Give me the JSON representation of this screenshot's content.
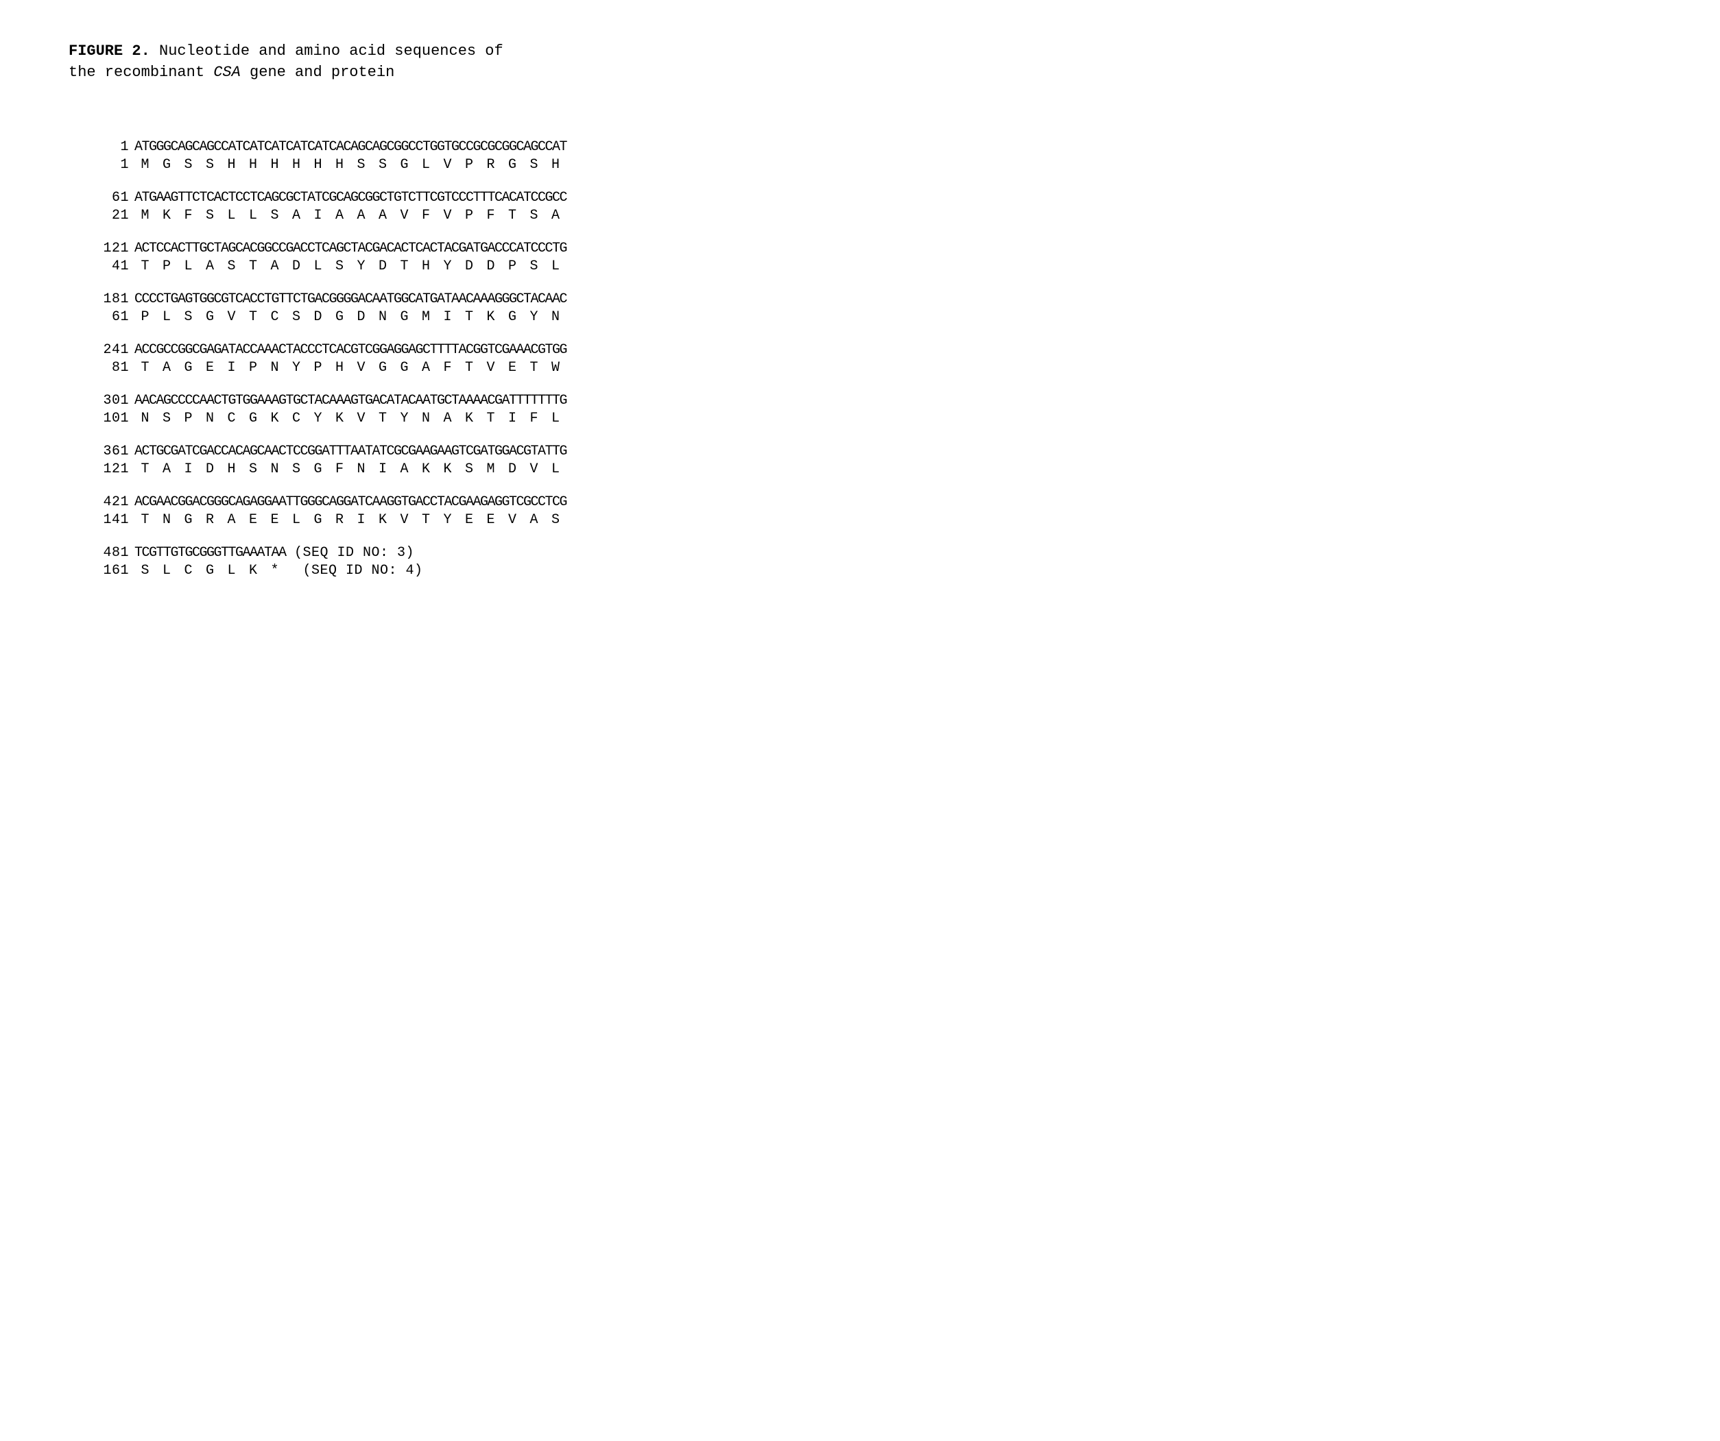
{
  "figure": {
    "label": "FIGURE 2.",
    "title_part1": "Nucleotide and amino acid sequences of",
    "title_part2": "the recombinant ",
    "gene_name": "CSA",
    "title_part3": " gene and protein"
  },
  "sequences": [
    {
      "nuc_pos": "1",
      "nucleotide": "ATGGGCAGCAGCCATCATCATCATCATCACAGCAGCGGCCTGGTGCCGCGCGGCAGCCAT",
      "aa_pos": "1",
      "amino_acids": [
        "M",
        "G",
        "S",
        "S",
        "H",
        "H",
        "H",
        "H",
        "H",
        "H",
        "S",
        "S",
        "G",
        "L",
        "V",
        "P",
        "R",
        "G",
        "S",
        "H"
      ]
    },
    {
      "nuc_pos": "61",
      "nucleotide": "ATGAAGTTCTCACTCCTCAGCGCTATCGCAGCGGCTGTCTTCGTCCCTTTCACATCCGCC",
      "aa_pos": "21",
      "amino_acids": [
        "M",
        "K",
        "F",
        "S",
        "L",
        "L",
        "S",
        "A",
        "I",
        "A",
        "A",
        "A",
        "V",
        "F",
        "V",
        "P",
        "F",
        "T",
        "S",
        "A"
      ]
    },
    {
      "nuc_pos": "121",
      "nucleotide": "ACTCCACTTGCTAGCACGGCCGACCTCAGCTACGACACTCACTACGATGACCCATCCCTG",
      "aa_pos": "41",
      "amino_acids": [
        "T",
        "P",
        "L",
        "A",
        "S",
        "T",
        "A",
        "D",
        "L",
        "S",
        "Y",
        "D",
        "T",
        "H",
        "Y",
        "D",
        "D",
        "P",
        "S",
        "L"
      ]
    },
    {
      "nuc_pos": "181",
      "nucleotide": "CCCCTGAGTGGCGTCACCTGTTCTGACGGGGACAATGGCATGATAACAAAGGGCTACAAC",
      "aa_pos": "61",
      "amino_acids": [
        "P",
        "L",
        "S",
        "G",
        "V",
        "T",
        "C",
        "S",
        "D",
        "G",
        "D",
        "N",
        "G",
        "M",
        "I",
        "T",
        "K",
        "G",
        "Y",
        "N"
      ]
    },
    {
      "nuc_pos": "241",
      "nucleotide": "ACCGCCGGCGAGATACCAAACTACCCTCACGTCGGAGGAGCTTTTACGGTCGAAACGTGG",
      "aa_pos": "81",
      "amino_acids": [
        "T",
        "A",
        "G",
        "E",
        "I",
        "P",
        "N",
        "Y",
        "P",
        "H",
        "V",
        "G",
        "G",
        "A",
        "F",
        "T",
        "V",
        "E",
        "T",
        "W"
      ]
    },
    {
      "nuc_pos": "301",
      "nucleotide": "AACAGCCCCAACTGTGGAAAGTGCTACAAAGTGACATACAATGCTAAAACGATTTTTTTG",
      "aa_pos": "101",
      "amino_acids": [
        "N",
        "S",
        "P",
        "N",
        "C",
        "G",
        "K",
        "C",
        "Y",
        "K",
        "V",
        "T",
        "Y",
        "N",
        "A",
        "K",
        "T",
        "I",
        "F",
        "L"
      ]
    },
    {
      "nuc_pos": "361",
      "nucleotide": "ACTGCGATCGACCACAGCAACTCCGGATTTAATATCGCGAAGAAGTCGATGGACGTATTG",
      "aa_pos": "121",
      "amino_acids": [
        "T",
        "A",
        "I",
        "D",
        "H",
        "S",
        "N",
        "S",
        "G",
        "F",
        "N",
        "I",
        "A",
        "K",
        "K",
        "S",
        "M",
        "D",
        "V",
        "L"
      ]
    },
    {
      "nuc_pos": "421",
      "nucleotide": "ACGAACGGACGGGCAGAGGAATTGGGCAGGATCAAGGTGACCTACGAAGAGGTCGCCTCG",
      "aa_pos": "141",
      "amino_acids": [
        "T",
        "N",
        "G",
        "R",
        "A",
        "E",
        "E",
        "L",
        "G",
        "R",
        "I",
        "K",
        "V",
        "T",
        "Y",
        "E",
        "E",
        "V",
        "A",
        "S"
      ]
    },
    {
      "nuc_pos": "481",
      "nucleotide": "TCGTTGTGCGGGTTGAAATAA",
      "nuc_suffix": " (SEQ ID NO: 3)",
      "aa_pos": "161",
      "amino_acids": [
        "S",
        "L",
        "C",
        "G",
        "L",
        "K",
        "*"
      ],
      "aa_suffix": "  (SEQ ID NO: 4)"
    }
  ]
}
